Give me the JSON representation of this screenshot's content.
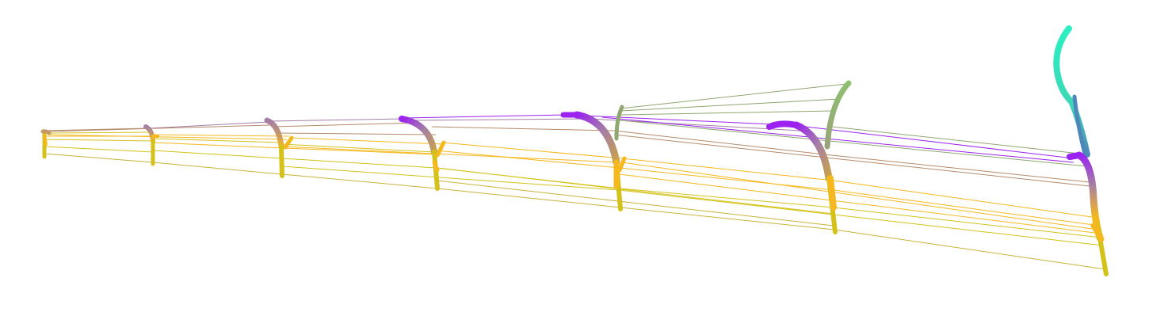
{
  "figure": {
    "background": "#ffffff",
    "timepoint_count": 7,
    "organs": [
      {
        "id": "stem",
        "color": "#d4c21a"
      },
      {
        "id": "upper-stem",
        "color": "#f5b81e"
      },
      {
        "id": "leaf",
        "color": "#a47ea6"
      },
      {
        "id": "leaf-tip",
        "color": "#9b22f0"
      },
      {
        "id": "green-leaf",
        "color": "#8fa870"
      },
      {
        "id": "young-leaf",
        "color": "#2cf0c2"
      },
      {
        "id": "blue-leaf",
        "color": "#4d87b9"
      }
    ],
    "link_colors": {
      "stem": "#d4c21a",
      "upper-stem": "#f5b81e",
      "leaf": "#b58a6a",
      "leaf-tip": "#9b22f0",
      "green-leaf": "#8fa870"
    }
  }
}
